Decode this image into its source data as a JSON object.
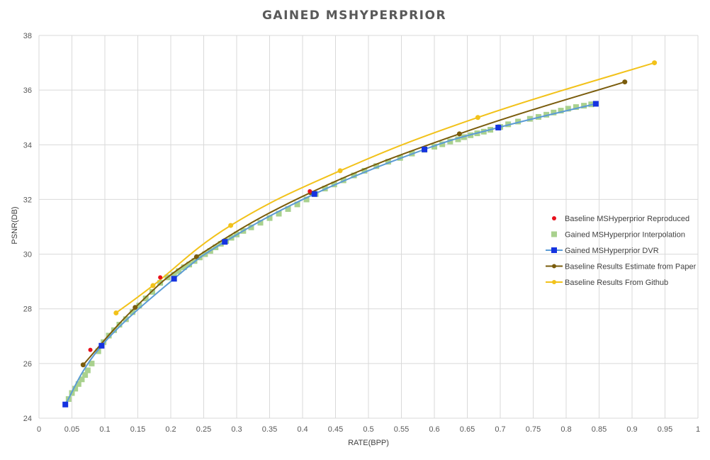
{
  "chart_data": {
    "type": "scatter",
    "title": "GAINED MSHYPERPRIOR",
    "xlabel": "RATE(BPP)",
    "ylabel": "PSNR(DB)",
    "xlim": [
      0,
      1
    ],
    "ylim": [
      24,
      38
    ],
    "x_ticks": [
      "0",
      "0.05",
      "0.1",
      "0.15",
      "0.2",
      "0.25",
      "0.3",
      "0.35",
      "0.4",
      "0.45",
      "0.5",
      "0.55",
      "0.6",
      "0.65",
      "0.7",
      "0.75",
      "0.8",
      "0.85",
      "0.9",
      "0.95",
      "1"
    ],
    "y_ticks": [
      "24",
      "26",
      "28",
      "30",
      "32",
      "34",
      "36",
      "38"
    ],
    "grid": true,
    "legend_position": "right",
    "series": [
      {
        "name": "Baseline MSHyperprior Reproduced",
        "style": "markers",
        "marker": "dot",
        "color": "#e8101c",
        "x": [
          0.078,
          0.184,
          0.411
        ],
        "y": [
          26.5,
          29.15,
          32.3
        ]
      },
      {
        "name": "Gained MSHyperprior Interpolation",
        "style": "markers",
        "marker": "square",
        "color": "#a9d18e",
        "x": [
          0.045,
          0.05,
          0.055,
          0.06,
          0.065,
          0.07,
          0.074,
          0.08,
          0.09,
          0.098,
          0.106,
          0.114,
          0.122,
          0.132,
          0.142,
          0.152,
          0.162,
          0.172,
          0.184,
          0.195,
          0.205,
          0.212,
          0.22,
          0.228,
          0.236,
          0.244,
          0.252,
          0.26,
          0.268,
          0.276,
          0.284,
          0.292,
          0.3,
          0.31,
          0.322,
          0.336,
          0.35,
          0.364,
          0.378,
          0.392,
          0.406,
          0.42,
          0.434,
          0.448,
          0.462,
          0.478,
          0.494,
          0.512,
          0.53,
          0.548,
          0.566,
          0.585,
          0.6,
          0.612,
          0.624,
          0.636,
          0.645,
          0.655,
          0.665,
          0.675,
          0.685,
          0.7,
          0.712,
          0.727,
          0.745,
          0.758,
          0.77,
          0.781,
          0.792,
          0.803,
          0.815,
          0.827,
          0.838
        ],
        "y": [
          24.7,
          24.92,
          25.08,
          25.25,
          25.42,
          25.58,
          25.75,
          26.0,
          26.45,
          26.78,
          27.02,
          27.22,
          27.42,
          27.62,
          27.88,
          28.12,
          28.38,
          28.62,
          28.95,
          29.15,
          29.25,
          29.38,
          29.52,
          29.62,
          29.75,
          29.88,
          30.0,
          30.12,
          30.25,
          30.38,
          30.48,
          30.6,
          30.72,
          30.85,
          30.98,
          31.15,
          31.32,
          31.48,
          31.65,
          31.82,
          32.0,
          32.2,
          32.4,
          32.55,
          32.7,
          32.88,
          33.05,
          33.22,
          33.38,
          33.52,
          33.68,
          33.82,
          33.93,
          34.02,
          34.12,
          34.2,
          34.28,
          34.35,
          34.42,
          34.48,
          34.55,
          34.65,
          34.75,
          34.85,
          34.95,
          35.02,
          35.1,
          35.18,
          35.25,
          35.32,
          35.38,
          35.43,
          35.48
        ]
      },
      {
        "name": "Gained MSHyperprior DVR",
        "style": "line+markers",
        "marker": "square",
        "color": "#5b9bd5",
        "marker_color": "#1533e0",
        "x": [
          0.04,
          0.095,
          0.205,
          0.282,
          0.418,
          0.585,
          0.697,
          0.845
        ],
        "y": [
          24.5,
          26.65,
          29.1,
          30.45,
          32.2,
          33.83,
          34.63,
          35.5
        ]
      },
      {
        "name": "Baseline Results Estimate from Paper",
        "style": "line+markers",
        "marker": "dot",
        "color": "#7a5c0c",
        "x": [
          0.067,
          0.146,
          0.239,
          0.412,
          0.638,
          0.889
        ],
        "y": [
          25.95,
          28.05,
          29.9,
          32.25,
          34.4,
          36.3
        ]
      },
      {
        "name": "Baseline Results From Github",
        "style": "line+markers",
        "marker": "dot",
        "color": "#f2c21a",
        "x": [
          0.117,
          0.173,
          0.291,
          0.457,
          0.666,
          0.934
        ],
        "y": [
          27.85,
          28.85,
          31.05,
          33.05,
          35.0,
          37.0
        ]
      }
    ]
  }
}
